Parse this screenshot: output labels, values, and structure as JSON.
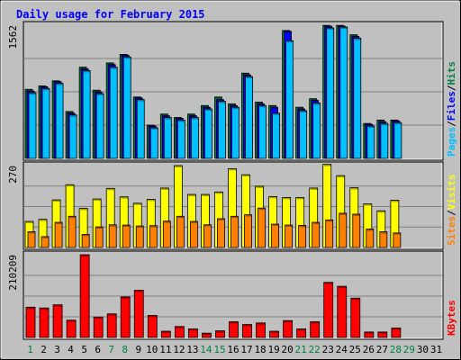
{
  "chart_data": {
    "type": "bar",
    "title": "Daily usage for February 2015",
    "categories": [
      "1",
      "2",
      "3",
      "4",
      "5",
      "6",
      "7",
      "8",
      "9",
      "10",
      "11",
      "12",
      "13",
      "14",
      "15",
      "16",
      "17",
      "18",
      "19",
      "20",
      "21",
      "22",
      "23",
      "24",
      "25",
      "26",
      "27",
      "28",
      "29",
      "30",
      "31"
    ],
    "weekend_days": [
      "1",
      "7",
      "8",
      "14",
      "15",
      "21",
      "22",
      "28",
      "29"
    ],
    "colors": {
      "pages": "#00c0ff",
      "files": "#0000ff",
      "hits": "#008040",
      "visits": "#ffff00",
      "sites": "#ff8000",
      "kbytes": "#ff0000",
      "title": "#0000ff",
      "weekday_tick": "#000000",
      "weekend_tick": "#008040"
    },
    "panels": [
      {
        "id": "pages-files-hits",
        "ymax_label": "1562",
        "ylim": [
          0,
          1562
        ],
        "legend": [
          {
            "text": "Pages",
            "color": "#00c0ff"
          },
          {
            "text": "Files",
            "color": "#0000ff"
          },
          {
            "text": "Hits",
            "color": "#008040"
          }
        ],
        "series": [
          {
            "name": "Hits",
            "color": "#008040",
            "values": [
              810,
              850,
              910,
              550,
              1070,
              800,
              1120,
              1220,
              720,
              390,
              520,
              480,
              520,
              620,
              720,
              640,
              1000,
              660,
              620,
              1500,
              600,
              700,
              1560,
              1560,
              1450,
              410,
              450,
              450,
              0,
              0,
              0
            ]
          },
          {
            "name": "Files",
            "color": "#0000ff",
            "values": [
              790,
              840,
              900,
              530,
              1050,
              780,
              1100,
              1210,
              710,
              380,
              500,
              470,
              500,
              600,
              690,
              620,
              980,
              640,
              600,
              1490,
              580,
              680,
              1550,
              1550,
              1430,
              400,
              430,
              440,
              0,
              0,
              0
            ]
          },
          {
            "name": "Pages",
            "color": "#00c0ff",
            "values": [
              770,
              820,
              880,
              510,
              1030,
              760,
              1070,
              1190,
              690,
              360,
              480,
              450,
              480,
              580,
              670,
              600,
              960,
              620,
              530,
              1380,
              560,
              650,
              1530,
              1540,
              1410,
              380,
              410,
              420,
              0,
              0,
              0
            ]
          }
        ]
      },
      {
        "id": "visits-sites",
        "ymax_label": "270",
        "ylim": [
          0,
          270
        ],
        "legend": [
          {
            "text": "Sites",
            "color": "#ff8000"
          },
          {
            "text": "Visits",
            "color": "#ffff00"
          }
        ],
        "series": [
          {
            "name": "Visits",
            "color": "#ffff00",
            "values": [
              86,
              93,
              157,
              207,
              129,
              160,
              195,
              167,
              146,
              159,
              196,
              270,
              175,
              175,
              183,
              260,
              240,
              202,
              168,
              165,
              165,
              196,
              274,
              237,
              197,
              144,
              121,
              156,
              0,
              0,
              0
            ]
          },
          {
            "name": "Sites",
            "color": "#ff8000",
            "values": [
              52,
              36,
              83,
              103,
              43,
              68,
              75,
              74,
              71,
              72,
              87,
              103,
              86,
              75,
              95,
              103,
              108,
              130,
              77,
              74,
              73,
              83,
              91,
              113,
              110,
              61,
              52,
              48,
              0,
              0,
              0
            ]
          }
        ]
      },
      {
        "id": "kbytes",
        "ymax_label": "210209",
        "ylim": [
          0,
          210209
        ],
        "legend": [
          {
            "text": "KBytes",
            "color": "#ff0000"
          }
        ],
        "series": [
          {
            "name": "KBytes",
            "color": "#ff0000",
            "values": [
              77000,
              75000,
              83000,
              44000,
              210209,
              52000,
              60000,
              103000,
              120000,
              56000,
              16000,
              28000,
              22000,
              11000,
              17000,
              40000,
              33000,
              37000,
              16000,
              43000,
              22000,
              40000,
              140000,
              130000,
              100000,
              14000,
              14000,
              24000,
              0,
              0,
              0
            ]
          }
        ]
      }
    ]
  }
}
